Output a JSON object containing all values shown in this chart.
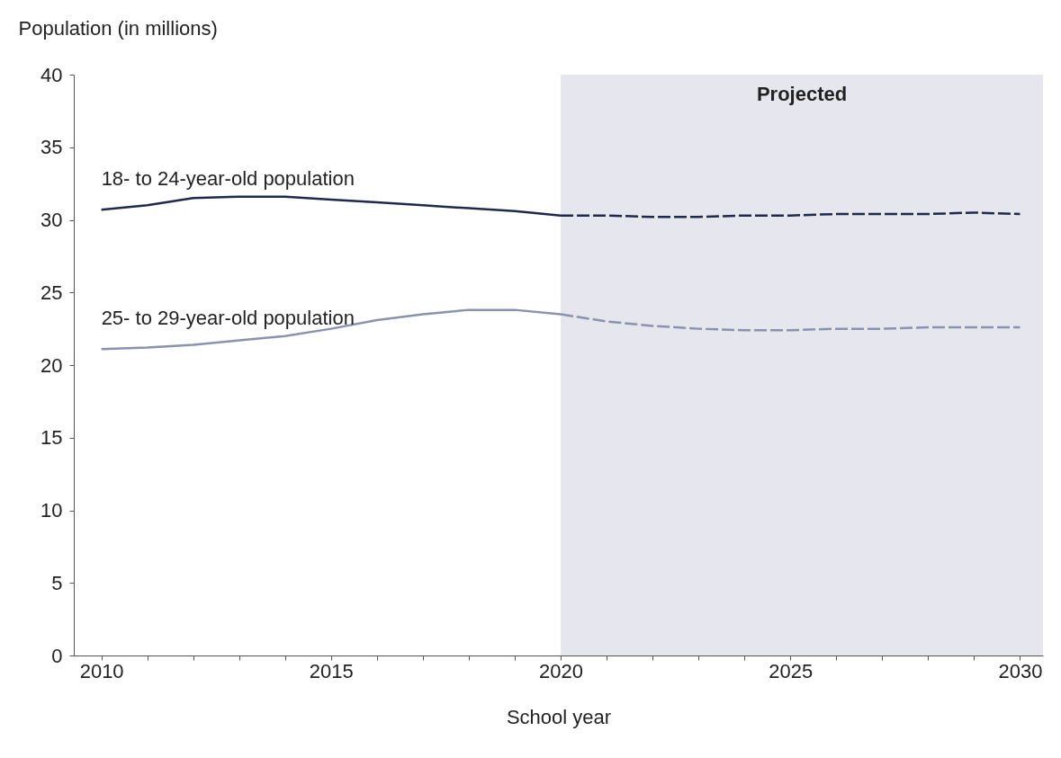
{
  "chart_data": {
    "type": "line",
    "ylabel": "Population (in millions)",
    "xlabel": "School year",
    "xlim": [
      2009.4,
      2030.5
    ],
    "ylim": [
      0,
      40
    ],
    "xticks": [
      2010,
      {
        "value": 2011,
        "label": null
      },
      {
        "value": 2012,
        "label": null
      },
      {
        "value": 2013,
        "label": null
      },
      {
        "value": 2014,
        "label": null
      },
      2015,
      {
        "value": 2016,
        "label": null
      },
      {
        "value": 2017,
        "label": null
      },
      {
        "value": 2018,
        "label": null
      },
      {
        "value": 2019,
        "label": null
      },
      2020,
      {
        "value": 2021,
        "label": null
      },
      {
        "value": 2022,
        "label": null
      },
      {
        "value": 2023,
        "label": null
      },
      {
        "value": 2024,
        "label": null
      },
      2025,
      {
        "value": 2026,
        "label": null
      },
      {
        "value": 2027,
        "label": null
      },
      {
        "value": 2028,
        "label": null
      },
      {
        "value": 2029,
        "label": null
      },
      2030
    ],
    "yticks": [
      0,
      5,
      10,
      15,
      20,
      25,
      30,
      35,
      40
    ],
    "grid": false,
    "marker": "none",
    "bands": [
      {
        "axis": "x",
        "from": 2020,
        "to": 2030.5,
        "label": "Projected",
        "color": "#e6e7ee"
      }
    ],
    "series": [
      {
        "name": "18- to 24-year-old population",
        "color": "#1f2a4a",
        "line_style": "solid",
        "x": [
          2010,
          2011,
          2012,
          2013,
          2014,
          2015,
          2016,
          2017,
          2018,
          2019,
          2020
        ],
        "values": [
          30.7,
          31.0,
          31.5,
          31.6,
          31.6,
          31.4,
          31.2,
          31.0,
          30.8,
          30.6,
          30.3
        ]
      },
      {
        "color": "#1f2a4a",
        "line_style": "dashed",
        "x": [
          2020,
          2021,
          2022,
          2023,
          2024,
          2025,
          2026,
          2027,
          2028,
          2029,
          2030
        ],
        "values": [
          30.3,
          30.3,
          30.2,
          30.2,
          30.3,
          30.3,
          30.4,
          30.4,
          30.4,
          30.5,
          30.4
        ]
      },
      {
        "name": "25- to 29-year-old population",
        "color": "#8a93ad",
        "line_style": "solid",
        "x": [
          2010,
          2011,
          2012,
          2013,
          2014,
          2015,
          2016,
          2017,
          2018,
          2019,
          2020
        ],
        "values": [
          21.1,
          21.2,
          21.4,
          21.7,
          22.0,
          22.5,
          23.1,
          23.5,
          23.8,
          23.8,
          23.5
        ]
      },
      {
        "color": "#8a93ad",
        "line_style": "dashed",
        "x": [
          2020,
          2021,
          2022,
          2023,
          2024,
          2025,
          2026,
          2027,
          2028,
          2029,
          2030
        ],
        "values": [
          23.5,
          23.0,
          22.7,
          22.5,
          22.4,
          22.4,
          22.5,
          22.5,
          22.6,
          22.6,
          22.6
        ]
      }
    ]
  }
}
